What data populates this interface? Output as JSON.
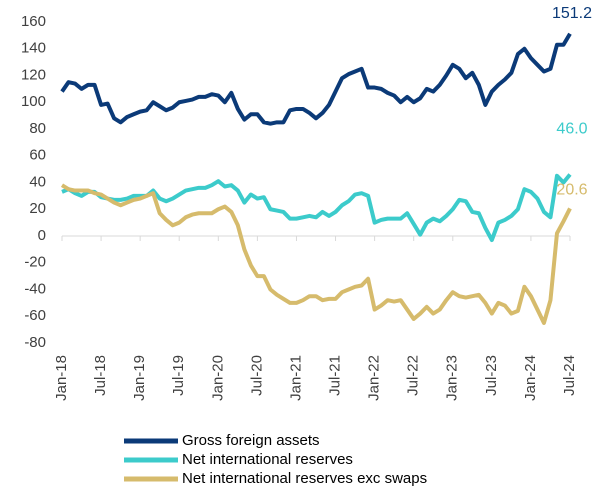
{
  "chart_data": {
    "type": "line",
    "categories": [
      "Jan-18",
      null,
      null,
      null,
      null,
      null,
      "Jul-18",
      null,
      null,
      null,
      null,
      null,
      "Jan-19",
      null,
      null,
      null,
      null,
      null,
      "Jul-19",
      null,
      null,
      null,
      null,
      null,
      "Jan-20",
      null,
      null,
      null,
      null,
      null,
      "Jul-20",
      null,
      null,
      null,
      null,
      null,
      "Jan-21",
      null,
      null,
      null,
      null,
      null,
      "Jul-21",
      null,
      null,
      null,
      null,
      null,
      "Jan-22",
      null,
      null,
      null,
      null,
      null,
      "Jul-22",
      null,
      null,
      null,
      null,
      null,
      "Jan-23",
      null,
      null,
      null,
      null,
      null,
      "Jul-23",
      null,
      null,
      null,
      null,
      null,
      "Jan-24",
      null,
      null,
      null,
      null,
      null,
      "Jul-24"
    ],
    "series": [
      {
        "name": "Gross foreign assets",
        "color": "#0b3a78",
        "end_label": "151.2",
        "values": [
          108,
          115,
          114,
          110,
          113,
          113,
          98,
          99,
          88,
          85,
          89,
          91,
          93,
          94,
          100,
          97,
          94,
          96,
          100,
          101,
          102,
          104,
          104,
          106,
          105,
          100,
          107,
          95,
          87,
          91,
          91,
          85,
          84,
          85,
          85,
          94,
          95,
          95,
          92,
          88,
          92,
          98,
          108,
          118,
          121,
          123,
          125,
          111,
          111,
          110,
          107,
          105,
          100,
          104,
          100,
          103,
          110,
          108,
          113,
          120,
          128,
          125,
          118,
          122,
          113,
          98,
          108,
          113,
          117,
          122,
          136,
          140,
          133,
          128,
          123,
          125,
          143,
          143,
          151.2
        ]
      },
      {
        "name": "Net international reserves",
        "color": "#3ccbcb",
        "end_label": "46.0",
        "values": [
          33,
          35,
          32,
          30,
          33,
          33,
          29,
          28,
          27,
          27,
          28,
          30,
          30,
          30,
          34,
          28,
          26,
          28,
          31,
          34,
          35,
          36,
          36,
          38,
          41,
          37,
          38,
          34,
          25,
          31,
          28,
          29,
          20,
          19,
          18,
          13,
          13,
          14,
          15,
          14,
          18,
          15,
          18,
          23,
          26,
          31,
          32,
          30,
          10,
          12,
          13,
          13,
          13,
          17,
          9,
          1,
          10,
          13,
          11,
          15,
          20,
          27,
          26,
          18,
          17,
          6,
          -3,
          10,
          12,
          15,
          20,
          35,
          33,
          28,
          18,
          14,
          45,
          40,
          46.0
        ]
      },
      {
        "name": "Net international reserves exc swaps",
        "color": "#d6bb6c",
        "end_label": "20.6",
        "values": [
          38,
          35,
          34,
          34,
          34,
          32,
          31,
          28,
          25,
          23,
          25,
          27,
          28,
          30,
          32,
          17,
          12,
          8,
          10,
          14,
          16,
          17,
          17,
          17,
          20,
          22,
          18,
          8,
          -10,
          -22,
          -30,
          -30,
          -40,
          -44,
          -47,
          -50,
          -50,
          -48,
          -45,
          -45,
          -48,
          -47,
          -47,
          -42,
          -40,
          -38,
          -37,
          -32,
          -55,
          -52,
          -48,
          -49,
          -48,
          -55,
          -62,
          -58,
          -53,
          -58,
          -55,
          -48,
          -42,
          -45,
          -46,
          -45,
          -44,
          -50,
          -58,
          -50,
          -52,
          -58,
          -56,
          -38,
          -45,
          -55,
          -65,
          -48,
          2,
          11,
          20.6
        ]
      }
    ],
    "ylim": [
      -80,
      160
    ],
    "yticks": [
      -80,
      -60,
      -40,
      -20,
      0,
      20,
      40,
      60,
      80,
      100,
      120,
      140,
      160
    ],
    "grid": false,
    "legend": "bottom"
  }
}
